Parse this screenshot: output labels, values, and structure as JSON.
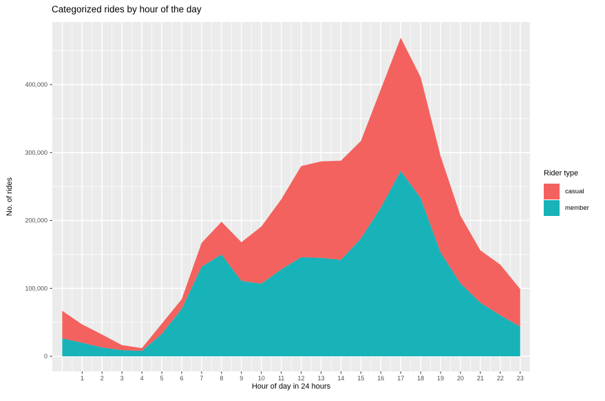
{
  "page": {
    "title": "Categorized rides by hour of the day"
  },
  "chart_data": {
    "type": "area",
    "stacked": true,
    "title": "Categorized rides by hour of the day",
    "xlabel": "Hour of day in 24 hours",
    "ylabel": "No. of rides",
    "x": [
      0,
      1,
      2,
      3,
      4,
      5,
      6,
      7,
      8,
      9,
      10,
      11,
      12,
      13,
      14,
      15,
      16,
      17,
      18,
      19,
      20,
      21,
      22,
      23
    ],
    "series": [
      {
        "name": "member",
        "color": "#18b3b9",
        "values": [
          26500,
          20000,
          13000,
          9000,
          8000,
          33000,
          70000,
          132000,
          150000,
          111000,
          107000,
          128000,
          146000,
          145000,
          142000,
          173500,
          219000,
          273000,
          233000,
          153000,
          107500,
          79000,
          60500,
          43500
        ]
      },
      {
        "name": "casual",
        "color": "#f3625e",
        "values": [
          40500,
          27000,
          19000,
          7500,
          4000,
          15000,
          14000,
          35000,
          48000,
          57000,
          84000,
          103000,
          134000,
          142000,
          146000,
          143500,
          174000,
          196000,
          178000,
          142000,
          99500,
          77000,
          74500,
          55500
        ]
      }
    ],
    "x_ticks": [
      1,
      2,
      3,
      4,
      5,
      6,
      7,
      8,
      9,
      10,
      11,
      12,
      13,
      14,
      15,
      16,
      17,
      18,
      19,
      20,
      21,
      22,
      23
    ],
    "y_ticks": [
      0,
      100000,
      200000,
      300000,
      400000
    ],
    "y_tick_labels": [
      "0",
      "100,000",
      "200,000",
      "300,000",
      "400,000"
    ],
    "ylim": [
      0,
      491000
    ],
    "grid": "major+minor",
    "legend_position": "right",
    "colors": {
      "panel_bg": "#ebebeb",
      "grid": "#ffffff",
      "tick_mark": "#333333",
      "tick_label": "#4d4d4d",
      "casual": "#f3625e",
      "member": "#18b3b9"
    },
    "legend": {
      "title": "Rider type",
      "entries": [
        {
          "label": "casual",
          "color": "#f3625e"
        },
        {
          "label": "member",
          "color": "#18b3b9"
        }
      ]
    }
  }
}
